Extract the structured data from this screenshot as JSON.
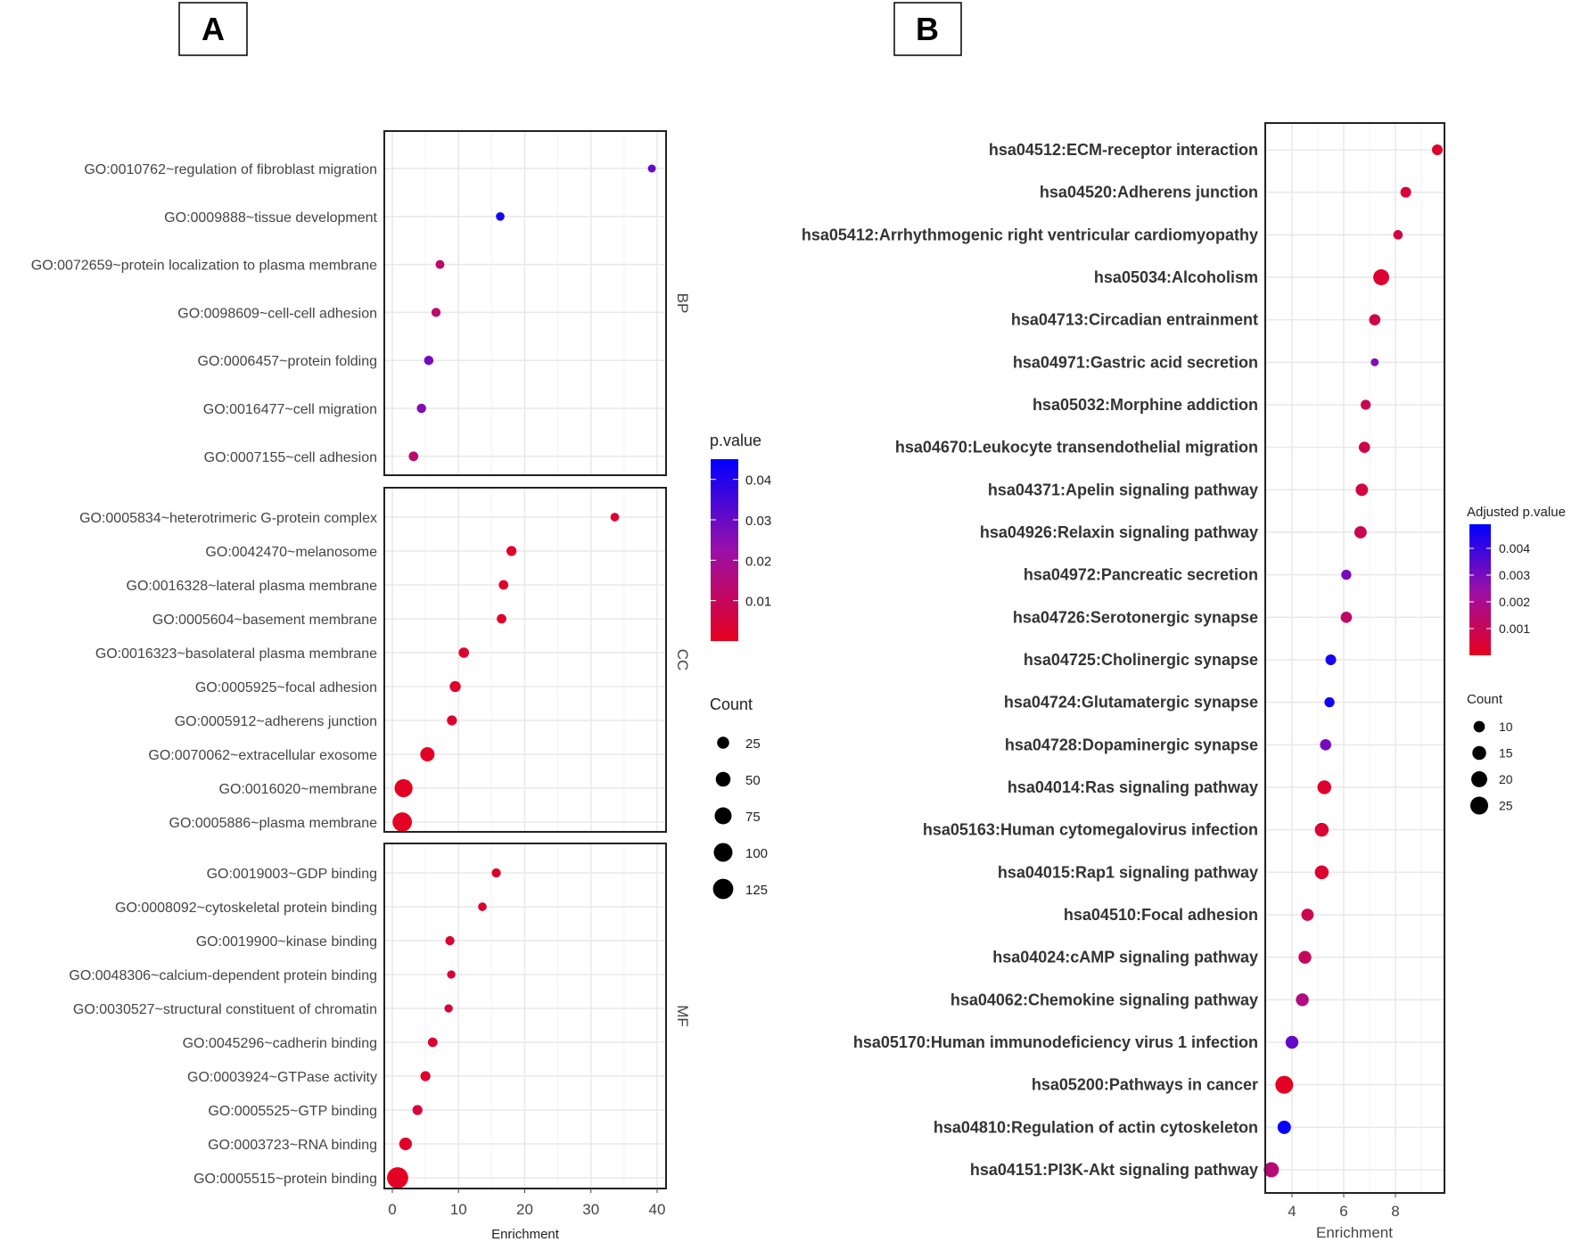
{
  "panels": {
    "a": "A",
    "b": "B"
  },
  "chart_data": [
    {
      "type": "scatter",
      "subtype": "dot-plot (facetted)",
      "xlabel": "Enrichment",
      "xlim": [
        0,
        41
      ],
      "xticks": [
        0,
        10,
        20,
        30,
        40
      ],
      "color_legend": {
        "title": "p.value",
        "ticks": [
          0.04,
          0.03,
          0.02,
          0.01
        ],
        "range": [
          0,
          0.045
        ]
      },
      "size_legend": {
        "title": "Count",
        "values": [
          25,
          50,
          75,
          100,
          125
        ]
      },
      "facets": [
        {
          "name": "BP",
          "terms": [
            {
              "label": "GO:0010762~regulation of fibroblast migration",
              "enrichment": 39.2,
              "p": 0.03,
              "count": 4
            },
            {
              "label": "GO:0009888~tissue development",
              "enrichment": 16.3,
              "p": 0.042,
              "count": 6
            },
            {
              "label": "GO:0072659~protein localization to plasma membrane",
              "enrichment": 7.2,
              "p": 0.012,
              "count": 7
            },
            {
              "label": "GO:0098609~cell-cell adhesion",
              "enrichment": 6.6,
              "p": 0.012,
              "count": 8
            },
            {
              "label": "GO:0006457~protein folding",
              "enrichment": 5.5,
              "p": 0.028,
              "count": 9
            },
            {
              "label": "GO:0016477~cell migration",
              "enrichment": 4.4,
              "p": 0.026,
              "count": 9
            },
            {
              "label": "GO:0007155~cell adhesion",
              "enrichment": 3.2,
              "p": 0.013,
              "count": 10
            }
          ]
        },
        {
          "name": "CC",
          "terms": [
            {
              "label": "GO:0005834~heterotrimeric G-protein complex",
              "enrichment": 33.6,
              "p": 0.003,
              "count": 6
            },
            {
              "label": "GO:0042470~melanosome",
              "enrichment": 18.0,
              "p": 0.002,
              "count": 12
            },
            {
              "label": "GO:0016328~lateral plasma membrane",
              "enrichment": 16.8,
              "p": 0.002,
              "count": 10
            },
            {
              "label": "GO:0005604~basement membrane",
              "enrichment": 16.5,
              "p": 0.002,
              "count": 10
            },
            {
              "label": "GO:0016323~basolateral plasma membrane",
              "enrichment": 10.8,
              "p": 0.002,
              "count": 14
            },
            {
              "label": "GO:0005925~focal adhesion",
              "enrichment": 9.5,
              "p": 0.002,
              "count": 18
            },
            {
              "label": "GO:0005912~adherens junction",
              "enrichment": 9.0,
              "p": 0.003,
              "count": 12
            },
            {
              "label": "GO:0070062~extracellular exosome",
              "enrichment": 5.3,
              "p": 0.001,
              "count": 45
            },
            {
              "label": "GO:0016020~membrane",
              "enrichment": 1.7,
              "p": 0.001,
              "count": 90
            },
            {
              "label": "GO:0005886~plasma membrane",
              "enrichment": 1.5,
              "p": 0.001,
              "count": 110
            }
          ]
        },
        {
          "name": "MF",
          "terms": [
            {
              "label": "GO:0019003~GDP binding",
              "enrichment": 15.7,
              "p": 0.003,
              "count": 8
            },
            {
              "label": "GO:0008092~cytoskeletal protein binding",
              "enrichment": 13.6,
              "p": 0.003,
              "count": 6
            },
            {
              "label": "GO:0019900~kinase binding",
              "enrichment": 8.7,
              "p": 0.003,
              "count": 8
            },
            {
              "label": "GO:0048306~calcium-dependent protein binding",
              "enrichment": 8.9,
              "p": 0.004,
              "count": 5
            },
            {
              "label": "GO:0030527~structural constituent of chromatin",
              "enrichment": 8.5,
              "p": 0.004,
              "count": 5
            },
            {
              "label": "GO:0045296~cadherin binding",
              "enrichment": 6.1,
              "p": 0.003,
              "count": 10
            },
            {
              "label": "GO:0003924~GTPase activity",
              "enrichment": 5.0,
              "p": 0.002,
              "count": 12
            },
            {
              "label": "GO:0005525~GTP binding",
              "enrichment": 3.8,
              "p": 0.004,
              "count": 12
            },
            {
              "label": "GO:0003723~RNA binding",
              "enrichment": 2.0,
              "p": 0.002,
              "count": 30
            },
            {
              "label": "GO:0005515~protein binding",
              "enrichment": 0.8,
              "p": 0.001,
              "count": 140
            }
          ]
        }
      ]
    },
    {
      "type": "scatter",
      "subtype": "dot-plot",
      "xlabel": "Enrichment",
      "xlim": [
        2.97,
        9.9
      ],
      "xticks": [
        4,
        6,
        8
      ],
      "color_legend": {
        "title": "Adjusted p.value",
        "ticks": [
          0.004,
          0.003,
          0.002,
          0.001
        ],
        "range": [
          0,
          0.0049
        ]
      },
      "size_legend": {
        "title": "Count",
        "values": [
          10,
          15,
          20,
          25
        ]
      },
      "terms": [
        {
          "label": "hsa04512:ECM-receptor interaction",
          "enrichment": 9.62,
          "p": 0.0002,
          "count": 9
        },
        {
          "label": "hsa04520:Adherens junction",
          "enrichment": 8.4,
          "p": 0.0005,
          "count": 9
        },
        {
          "label": "hsa05412:Arrhythmogenic right ventricular cardiomyopathy",
          "enrichment": 8.1,
          "p": 0.0006,
          "count": 7
        },
        {
          "label": "hsa05034:Alcoholism",
          "enrichment": 7.45,
          "p": 0.0003,
          "count": 20
        },
        {
          "label": "hsa04713:Circadian entrainment",
          "enrichment": 7.2,
          "p": 0.0007,
          "count": 10
        },
        {
          "label": "hsa04971:Gastric acid secretion",
          "enrichment": 7.2,
          "p": 0.0028,
          "count": 5
        },
        {
          "label": "hsa05032:Morphine addiction",
          "enrichment": 6.85,
          "p": 0.0009,
          "count": 8
        },
        {
          "label": "hsa04670:Leukocyte transendothelial migration",
          "enrichment": 6.8,
          "p": 0.0008,
          "count": 10
        },
        {
          "label": "hsa04371:Apelin signaling pathway",
          "enrichment": 6.7,
          "p": 0.0006,
          "count": 12
        },
        {
          "label": "hsa04926:Relaxin signaling pathway",
          "enrichment": 6.65,
          "p": 0.0009,
          "count": 12
        },
        {
          "label": "hsa04972:Pancreatic secretion",
          "enrichment": 6.1,
          "p": 0.003,
          "count": 8
        },
        {
          "label": "hsa04726:Serotonergic synapse",
          "enrichment": 6.1,
          "p": 0.0013,
          "count": 10
        },
        {
          "label": "hsa04725:Cholinergic synapse",
          "enrichment": 5.5,
          "p": 0.0045,
          "count": 9
        },
        {
          "label": "hsa04724:Glutamatergic synapse",
          "enrichment": 5.45,
          "p": 0.0046,
          "count": 8
        },
        {
          "label": "hsa04728:Dopaminergic synapse",
          "enrichment": 5.3,
          "p": 0.003,
          "count": 10
        },
        {
          "label": "hsa04014:Ras signaling pathway",
          "enrichment": 5.25,
          "p": 0.0003,
          "count": 15
        },
        {
          "label": "hsa05163:Human cytomegalovirus infection",
          "enrichment": 5.15,
          "p": 0.0004,
          "count": 15
        },
        {
          "label": "hsa04015:Rap1 signaling pathway",
          "enrichment": 5.15,
          "p": 0.0003,
          "count": 15
        },
        {
          "label": "hsa04510:Focal adhesion",
          "enrichment": 4.6,
          "p": 0.0009,
          "count": 12
        },
        {
          "label": "hsa04024:cAMP signaling pathway",
          "enrichment": 4.5,
          "p": 0.0011,
          "count": 13
        },
        {
          "label": "hsa04062:Chemokine signaling pathway",
          "enrichment": 4.4,
          "p": 0.0017,
          "count": 13
        },
        {
          "label": "hsa05170:Human immunodeficiency virus 1 infection",
          "enrichment": 4.0,
          "p": 0.0033,
          "count": 13
        },
        {
          "label": "hsa05200:Pathways in cancer",
          "enrichment": 3.7,
          "p": 0.0001,
          "count": 25
        },
        {
          "label": "hsa04810:Regulation of actin cytoskeleton",
          "enrichment": 3.7,
          "p": 0.0048,
          "count": 14
        },
        {
          "label": "hsa04151:PI3K-Akt signaling pathway",
          "enrichment": 3.2,
          "p": 0.0015,
          "count": 18
        }
      ]
    }
  ],
  "colors": {
    "low": "#e6001e",
    "mid": "#9a10a8",
    "high": "#0000ff"
  }
}
